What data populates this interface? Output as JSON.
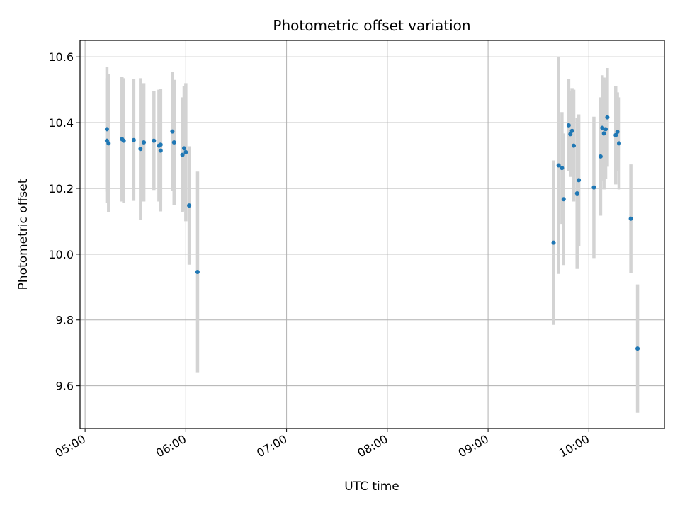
{
  "chart_data": {
    "type": "scatter",
    "title": "Photometric offset variation",
    "xlabel": "UTC time",
    "ylabel": "Photometric offset",
    "x_axis_type": "time",
    "xlim": [
      "04:57",
      "10:45"
    ],
    "ylim": [
      9.47,
      10.65
    ],
    "x_ticks": [
      "05:00",
      "06:00",
      "07:00",
      "08:00",
      "09:00",
      "10:00"
    ],
    "y_ticks": [
      9.6,
      9.8,
      10.0,
      10.2,
      10.4,
      10.6
    ],
    "grid": true,
    "point_color": "#1f77b4",
    "errorbar_color": "#d3d3d3",
    "points": [
      {
        "x": "05:13",
        "y": 10.38,
        "err": 0.19
      },
      {
        "x": "05:13",
        "y": 10.345,
        "err": 0.19
      },
      {
        "x": "05:14",
        "y": 10.337,
        "err": 0.21
      },
      {
        "x": "05:22",
        "y": 10.35,
        "err": 0.19
      },
      {
        "x": "05:23",
        "y": 10.345,
        "err": 0.19
      },
      {
        "x": "05:29",
        "y": 10.347,
        "err": 0.185
      },
      {
        "x": "05:33",
        "y": 10.32,
        "err": 0.215
      },
      {
        "x": "05:35",
        "y": 10.34,
        "err": 0.18
      },
      {
        "x": "05:41",
        "y": 10.345,
        "err": 0.15
      },
      {
        "x": "05:44",
        "y": 10.33,
        "err": 0.17
      },
      {
        "x": "05:45",
        "y": 10.315,
        "err": 0.185
      },
      {
        "x": "05:45",
        "y": 10.333,
        "err": 0.17
      },
      {
        "x": "05:52",
        "y": 10.373,
        "err": 0.18
      },
      {
        "x": "05:53",
        "y": 10.34,
        "err": 0.19
      },
      {
        "x": "05:58",
        "y": 10.302,
        "err": 0.175
      },
      {
        "x": "05:59",
        "y": 10.322,
        "err": 0.19
      },
      {
        "x": "06:00",
        "y": 10.31,
        "err": 0.21
      },
      {
        "x": "06:02",
        "y": 10.148,
        "err": 0.18
      },
      {
        "x": "06:07",
        "y": 9.946,
        "err": 0.305
      },
      {
        "x": "09:39",
        "y": 10.035,
        "err": 0.25
      },
      {
        "x": "09:42",
        "y": 10.27,
        "err": 0.33
      },
      {
        "x": "09:44",
        "y": 10.262,
        "err": 0.17
      },
      {
        "x": "09:45",
        "y": 10.167,
        "err": 0.2
      },
      {
        "x": "09:48",
        "y": 10.392,
        "err": 0.14
      },
      {
        "x": "09:49",
        "y": 10.365,
        "err": 0.13
      },
      {
        "x": "09:50",
        "y": 10.375,
        "err": 0.13
      },
      {
        "x": "09:51",
        "y": 10.33,
        "err": 0.17
      },
      {
        "x": "09:53",
        "y": 10.185,
        "err": 0.23
      },
      {
        "x": "09:54",
        "y": 10.225,
        "err": 0.2
      },
      {
        "x": "10:03",
        "y": 10.203,
        "err": 0.215
      },
      {
        "x": "10:07",
        "y": 10.297,
        "err": 0.18
      },
      {
        "x": "10:08",
        "y": 10.384,
        "err": 0.16
      },
      {
        "x": "10:09",
        "y": 10.367,
        "err": 0.17
      },
      {
        "x": "10:10",
        "y": 10.38,
        "err": 0.15
      },
      {
        "x": "10:11",
        "y": 10.416,
        "err": 0.15
      },
      {
        "x": "10:16",
        "y": 10.362,
        "err": 0.15
      },
      {
        "x": "10:17",
        "y": 10.372,
        "err": 0.12
      },
      {
        "x": "10:18",
        "y": 10.337,
        "err": 0.14
      },
      {
        "x": "10:25",
        "y": 10.108,
        "err": 0.165
      },
      {
        "x": "10:29",
        "y": 9.713,
        "err": 0.195
      }
    ]
  }
}
